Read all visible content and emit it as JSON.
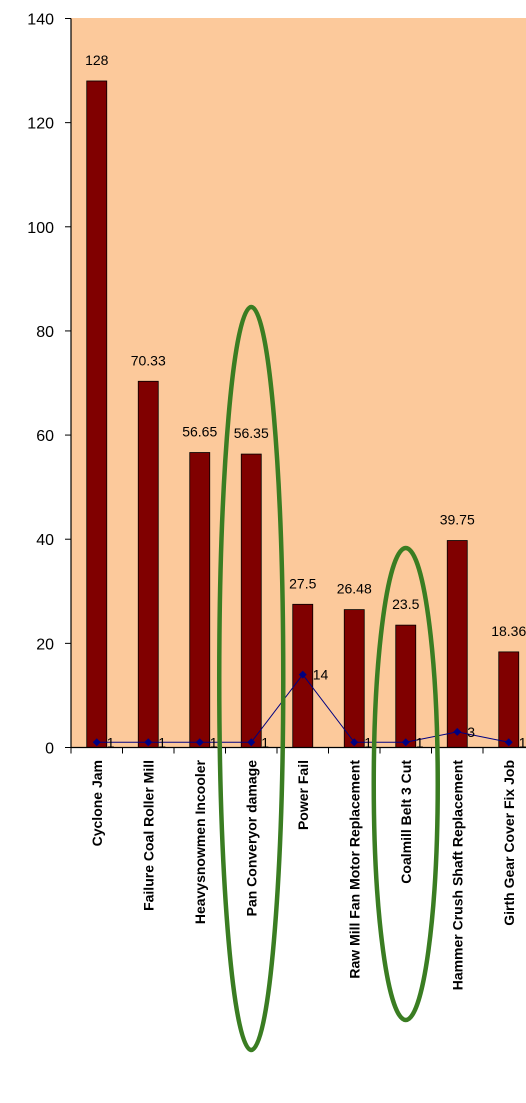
{
  "chart_data": {
    "type": "bar",
    "categories": [
      "Cyclone Jam",
      "Failure Coal Roller Mill",
      "Heavysnowmen Incooler",
      "Pan Converyor damage",
      "Power Fail",
      "Raw Mill Fan Motor Replacement",
      "Coalmill Belt 3 Cut",
      "Hammer Crush Shaft Replacement",
      "Girth Gear Cover Fix Job"
    ],
    "series": [
      {
        "type": "bar",
        "values": [
          128,
          70.33,
          56.65,
          56.35,
          27.5,
          26.48,
          23.5,
          39.75,
          18.36
        ],
        "labels": [
          "128",
          "70.33",
          "56.65",
          "56.35",
          "27.5",
          "26.48",
          "23.5",
          "39.75",
          "18.36"
        ]
      },
      {
        "type": "line",
        "values": [
          1,
          1,
          1,
          1,
          14,
          1,
          1,
          3,
          1
        ],
        "labels": [
          "1",
          "1",
          "1",
          "1",
          "14",
          "1",
          "1",
          "3",
          "1"
        ]
      }
    ],
    "ylim": [
      0,
      140
    ],
    "yticks": [
      "0",
      "20",
      "40",
      "60",
      "80",
      "100",
      "120",
      "140"
    ],
    "grid": false,
    "highlights": [
      "Pan Converyor damage",
      "Coalmill Belt 3 Cut"
    ],
    "colors": {
      "plot_bg": "#FCC99B",
      "bar": "#800000",
      "line": "#000080",
      "highlight_ellipse": "#3A7D22",
      "axis": "#000000"
    }
  }
}
